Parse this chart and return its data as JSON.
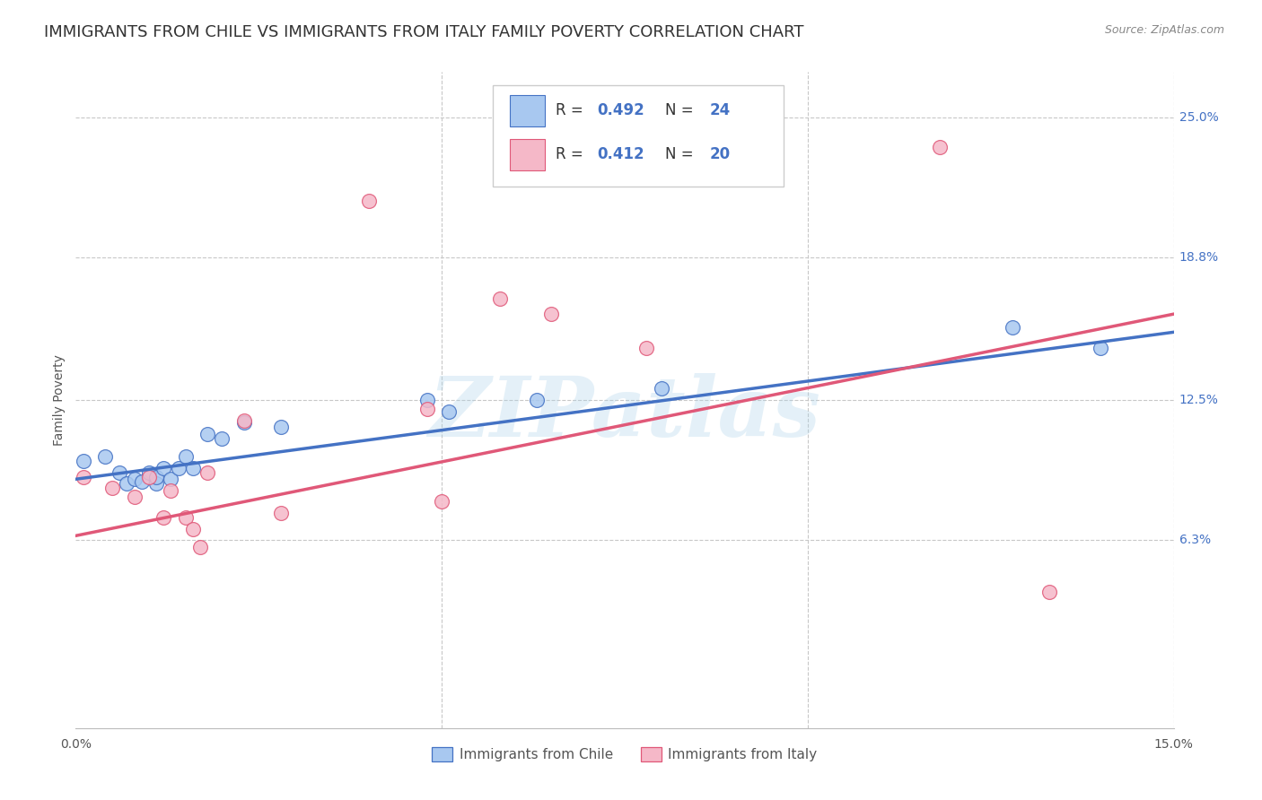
{
  "title": "IMMIGRANTS FROM CHILE VS IMMIGRANTS FROM ITALY FAMILY POVERTY CORRELATION CHART",
  "source": "Source: ZipAtlas.com",
  "ylabel": "Family Poverty",
  "x_min": 0.0,
  "x_max": 0.15,
  "y_min": -0.02,
  "y_max": 0.27,
  "y_tick_right": [
    0.063,
    0.125,
    0.188,
    0.25
  ],
  "y_tick_right_labels": [
    "6.3%",
    "12.5%",
    "18.8%",
    "25.0%"
  ],
  "legend_label1": "Immigrants from Chile",
  "legend_label2": "Immigrants from Italy",
  "color_chile": "#a8c8f0",
  "color_italy": "#f5b8c8",
  "color_line_chile": "#4472c4",
  "color_line_italy": "#e05878",
  "color_text_blue": "#4472c4",
  "watermark_text": "ZIPatlas",
  "scatter_chile_x": [
    0.001,
    0.004,
    0.006,
    0.007,
    0.008,
    0.009,
    0.01,
    0.011,
    0.011,
    0.012,
    0.013,
    0.014,
    0.015,
    0.016,
    0.018,
    0.02,
    0.023,
    0.028,
    0.048,
    0.051,
    0.063,
    0.08,
    0.128,
    0.14
  ],
  "scatter_chile_y": [
    0.098,
    0.1,
    0.093,
    0.088,
    0.09,
    0.089,
    0.093,
    0.088,
    0.091,
    0.095,
    0.09,
    0.095,
    0.1,
    0.095,
    0.11,
    0.108,
    0.115,
    0.113,
    0.125,
    0.12,
    0.125,
    0.13,
    0.157,
    0.148
  ],
  "scatter_italy_x": [
    0.001,
    0.005,
    0.008,
    0.01,
    0.012,
    0.013,
    0.015,
    0.016,
    0.017,
    0.018,
    0.023,
    0.028,
    0.04,
    0.048,
    0.05,
    0.058,
    0.065,
    0.078,
    0.118,
    0.133
  ],
  "scatter_italy_y": [
    0.091,
    0.086,
    0.082,
    0.091,
    0.073,
    0.085,
    0.073,
    0.068,
    0.06,
    0.093,
    0.116,
    0.075,
    0.213,
    0.121,
    0.08,
    0.17,
    0.163,
    0.148,
    0.237,
    0.04
  ],
  "marker_size": 130,
  "line_width": 2.5,
  "title_fontsize": 13,
  "axis_label_fontsize": 10,
  "tick_fontsize": 10,
  "legend_fontsize": 12,
  "grid_color": "#c8c8c8",
  "background_color": "#ffffff",
  "blue_line_x0": 0.0,
  "blue_line_y0": 0.09,
  "blue_line_x1": 0.15,
  "blue_line_y1": 0.155,
  "pink_line_x0": 0.0,
  "pink_line_y0": 0.065,
  "pink_line_x1": 0.15,
  "pink_line_y1": 0.163
}
